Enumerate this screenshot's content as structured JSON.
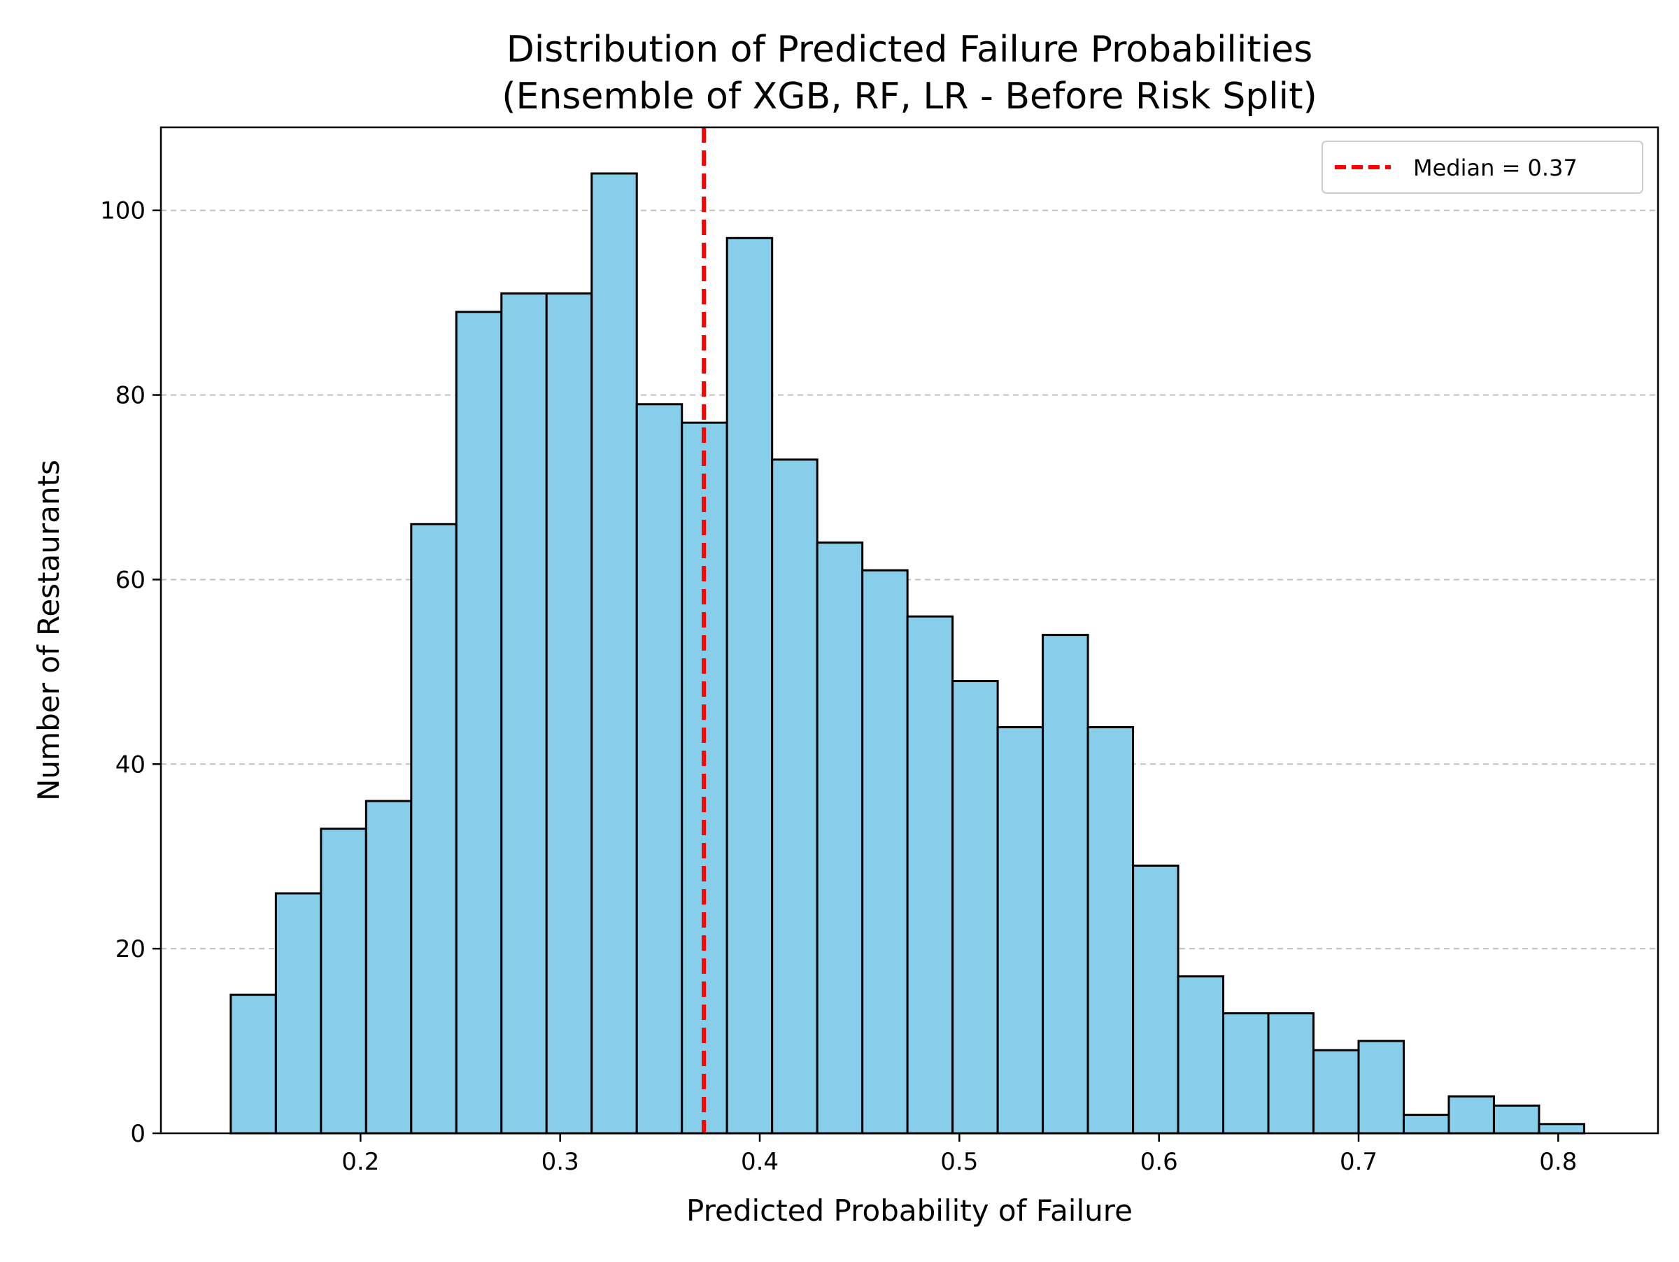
{
  "chart_data": {
    "type": "bar",
    "title_line1": "Distribution of Predicted Failure Probabilities",
    "title_line2": "(Ensemble of XGB, RF, LR - Before Risk Split)",
    "xlabel": "Predicted Probability of Failure",
    "ylabel": "Number of Restaurants",
    "xlim": [
      0.1,
      0.85
    ],
    "ylim": [
      0,
      109
    ],
    "x_ticks": [
      0.2,
      0.3,
      0.4,
      0.5,
      0.6,
      0.7,
      0.8
    ],
    "x_tick_labels": [
      "0.2",
      "0.3",
      "0.4",
      "0.5",
      "0.6",
      "0.7",
      "0.8"
    ],
    "y_ticks": [
      0,
      20,
      40,
      60,
      80,
      100
    ],
    "y_tick_labels": [
      "0",
      "20",
      "40",
      "60",
      "80",
      "100"
    ],
    "grid": "y-dashed",
    "bin_start": 0.135,
    "bin_width": 0.0226,
    "values": [
      15,
      26,
      33,
      36,
      66,
      89,
      91,
      91,
      104,
      79,
      77,
      97,
      73,
      64,
      61,
      56,
      49,
      44,
      54,
      44,
      29,
      17,
      13,
      13,
      9,
      10,
      2,
      4,
      3,
      1
    ],
    "median": 0.372,
    "legend": {
      "position": "top-right",
      "label": "Median = 0.37"
    },
    "colors": {
      "bar_fill": "#87ceeb",
      "bar_edge": "#000000",
      "median_line": "#ff0000",
      "grid": "#c0c0c0"
    }
  }
}
